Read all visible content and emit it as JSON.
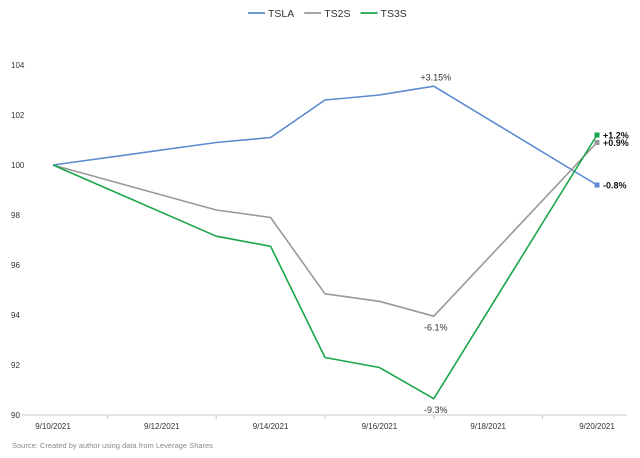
{
  "chart_data": {
    "type": "line",
    "title": "",
    "xlabel": "",
    "ylabel": "",
    "ylim": [
      90,
      104
    ],
    "y_ticks": [
      90,
      92,
      94,
      96,
      98,
      100,
      102,
      104
    ],
    "x_tick_labels": [
      "9/10/2021",
      "9/12/2021",
      "9/14/2021",
      "9/16/2021",
      "9/18/2021",
      "9/20/2021"
    ],
    "x": [
      "9/10/2021",
      "9/13/2021",
      "9/14/2021",
      "9/15/2021",
      "9/16/2021",
      "9/17/2021",
      "9/20/2021"
    ],
    "series": [
      {
        "name": "TSLA",
        "color": "#5b8bd0",
        "values": [
          100.0,
          100.9,
          101.1,
          102.6,
          102.8,
          103.15,
          99.2
        ]
      },
      {
        "name": "TS2S",
        "color": "#999999",
        "values": [
          100.0,
          98.2,
          97.9,
          94.85,
          94.55,
          93.95,
          100.9
        ]
      },
      {
        "name": "TS3S",
        "color": "#1aa64a",
        "values": [
          100.0,
          97.15,
          96.75,
          92.3,
          91.9,
          90.65,
          101.2
        ]
      }
    ],
    "annotations": [
      {
        "series": "TSLA",
        "point": "9/17/2021",
        "text": "+3.15%"
      },
      {
        "series": "TS2S",
        "point": "9/17/2021",
        "text": "-6.1%"
      },
      {
        "series": "TS3S",
        "point": "9/17/2021",
        "text": "-9.3%"
      }
    ],
    "end_labels": [
      {
        "series": "TS3S",
        "text": "+1.2%"
      },
      {
        "series": "TS2S",
        "text": "+0.9%"
      },
      {
        "series": "TSLA",
        "text": "-0.8%"
      }
    ],
    "legend": "top-center",
    "grid": false
  },
  "source": "Source: Created by author using data from Leverage Shares"
}
